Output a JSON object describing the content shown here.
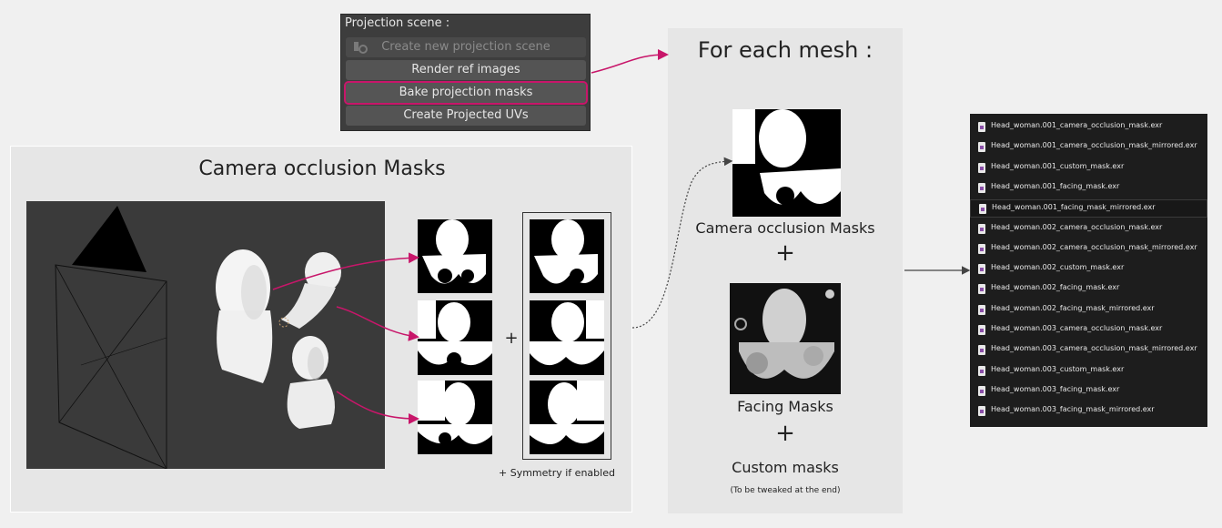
{
  "projection_panel": {
    "title": "Projection scene :",
    "buttons": [
      {
        "label": "Create new projection scene",
        "state": "disabled"
      },
      {
        "label": "Render ref images",
        "state": "normal"
      },
      {
        "label": "Bake projection masks",
        "state": "highlighted"
      },
      {
        "label": "Create Projected UVs",
        "state": "normal"
      }
    ]
  },
  "left_panel": {
    "title": "Camera occlusion Masks",
    "plus": "+",
    "symmetry_note": "+ Symmetry if enabled"
  },
  "mid_panel": {
    "title": "For each mesh :",
    "camera_label": "Camera occlusion Masks",
    "plus1": "+",
    "facing_label": "Facing Masks",
    "plus2": "+",
    "custom_label": "Custom masks",
    "custom_note": "(To be tweaked at the end)"
  },
  "files": [
    "Head_woman.001_camera_occlusion_mask.exr",
    "Head_woman.001_camera_occlusion_mask_mirrored.exr",
    "Head_woman.001_custom_mask.exr",
    "Head_woman.001_facing_mask.exr",
    "Head_woman.001_facing_mask_mirrored.exr",
    "Head_woman.002_camera_occlusion_mask.exr",
    "Head_woman.002_camera_occlusion_mask_mirrored.exr",
    "Head_woman.002_custom_mask.exr",
    "Head_woman.002_facing_mask.exr",
    "Head_woman.002_facing_mask_mirrored.exr",
    "Head_woman.003_camera_occlusion_mask.exr",
    "Head_woman.003_camera_occlusion_mask_mirrored.exr",
    "Head_woman.003_custom_mask.exr",
    "Head_woman.003_facing_mask.exr",
    "Head_woman.003_facing_mask_mirrored.exr"
  ],
  "selected_file_index": 4,
  "colors": {
    "arrow_accent": "#c8166a",
    "panel_bg": "#e6e6e6",
    "file_list_bg": "#1d1d1d"
  }
}
